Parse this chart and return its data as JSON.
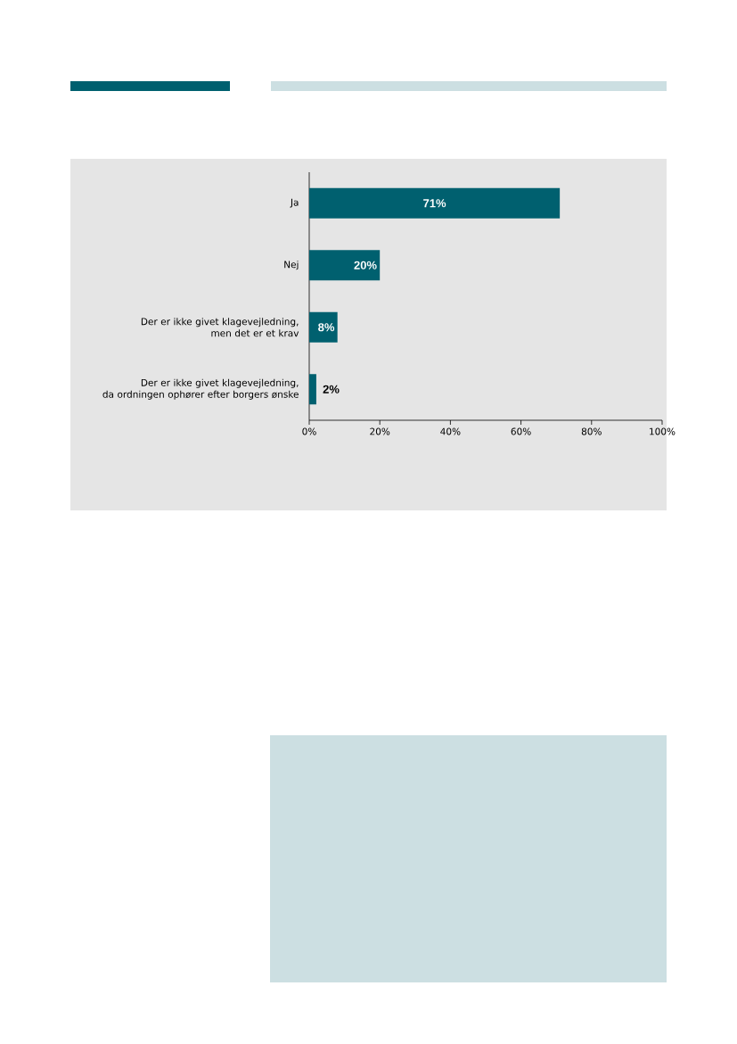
{
  "chart_data": {
    "type": "bar",
    "orientation": "horizontal",
    "categories": [
      "Ja",
      "Nej",
      "Der er ikke givet klagevejledning,\nmen det er et krav",
      "Der er ikke givet klagevejledning,\nda ordningen ophører efter borgers ønske"
    ],
    "values": [
      71,
      20,
      8,
      2
    ],
    "color": "#00606f",
    "value_labels": [
      "71%",
      "20%",
      "8%",
      "2%"
    ],
    "xlim": [
      0,
      100
    ],
    "xticks": [
      {
        "value": 0,
        "label": "0%"
      },
      {
        "value": 20,
        "label": "20%"
      },
      {
        "value": 40,
        "label": "40%"
      },
      {
        "value": 60,
        "label": "60%"
      },
      {
        "value": 80,
        "label": "80%"
      },
      {
        "value": 100,
        "label": "100%"
      }
    ]
  }
}
